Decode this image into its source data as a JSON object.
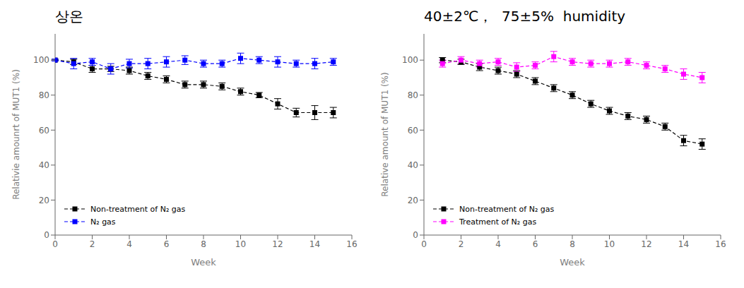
{
  "chart_data": [
    {
      "type": "line",
      "title": "상온",
      "xlabel": "Week",
      "ylabel": "Relativie amounrt of MUT1 (%)",
      "x": [
        0,
        1,
        2,
        3,
        4,
        5,
        6,
        7,
        8,
        9,
        10,
        11,
        12,
        13,
        14,
        15
      ],
      "series": [
        {
          "name": "Non-treatment of N₂ gas",
          "color": "#000000",
          "marker": "square",
          "line_style": "dashed",
          "values": [
            100,
            99,
            95,
            95,
            94,
            91,
            89,
            86,
            86,
            85,
            82,
            80,
            75,
            70,
            70,
            70
          ],
          "errors": [
            0.5,
            1.5,
            2,
            1.5,
            2,
            2,
            2,
            2,
            2,
            2,
            2,
            1.5,
            3,
            2.5,
            4,
            3
          ]
        },
        {
          "name": "N₂ gas",
          "color": "#0000FF",
          "marker": "square",
          "line_style": "dashed",
          "values": [
            100,
            98,
            99,
            95,
            98,
            98,
            99,
            100,
            98,
            98,
            101,
            100,
            99,
            98,
            98,
            99
          ],
          "errors": [
            0.5,
            3,
            2,
            3,
            2.5,
            3,
            3,
            2.5,
            2,
            2,
            3,
            2,
            3,
            2,
            3,
            2
          ]
        }
      ],
      "xlim": [
        0,
        16
      ],
      "xticks": [
        0,
        2,
        4,
        6,
        8,
        10,
        12,
        14,
        16
      ],
      "ylim": [
        0,
        115
      ],
      "yticks": [
        0,
        20,
        40,
        60,
        80,
        100
      ],
      "grid": false,
      "legend": "lower left"
    },
    {
      "type": "line",
      "title": "40±2℃，  75±5%  humidity",
      "xlabel": "Week",
      "ylabel": "Relative amount of MUT1 (%)",
      "x": [
        1,
        2,
        3,
        4,
        5,
        6,
        7,
        8,
        9,
        10,
        11,
        12,
        13,
        14,
        15
      ],
      "series": [
        {
          "name": "Non-treatment of N₂ gas",
          "color": "#000000",
          "marker": "square",
          "line_style": "dashed",
          "values": [
            100,
            99,
            96,
            94,
            92,
            88,
            84,
            80,
            75,
            71,
            68,
            66,
            62,
            54,
            52
          ],
          "errors": [
            1.5,
            1.5,
            2,
            2,
            2,
            2,
            2,
            2,
            2,
            2,
            2,
            2,
            2,
            3,
            3
          ]
        },
        {
          "name": "Treatment of N₂ gas",
          "color": "#FF00FF",
          "marker": "square",
          "line_style": "dashed",
          "values": [
            98,
            100,
            98,
            99,
            96,
            97,
            102,
            99,
            98,
            98,
            99,
            97,
            95,
            92,
            90
          ],
          "errors": [
            2,
            2,
            2,
            2,
            2.5,
            2,
            3,
            2,
            2,
            2,
            2,
            2,
            2,
            3,
            3
          ]
        }
      ],
      "xlim": [
        0,
        16
      ],
      "xticks": [
        0,
        2,
        4,
        6,
        8,
        10,
        12,
        14,
        16
      ],
      "ylim": [
        0,
        115
      ],
      "yticks": [
        0,
        20,
        40,
        60,
        80,
        100
      ],
      "grid": false,
      "legend": "lower left"
    }
  ]
}
